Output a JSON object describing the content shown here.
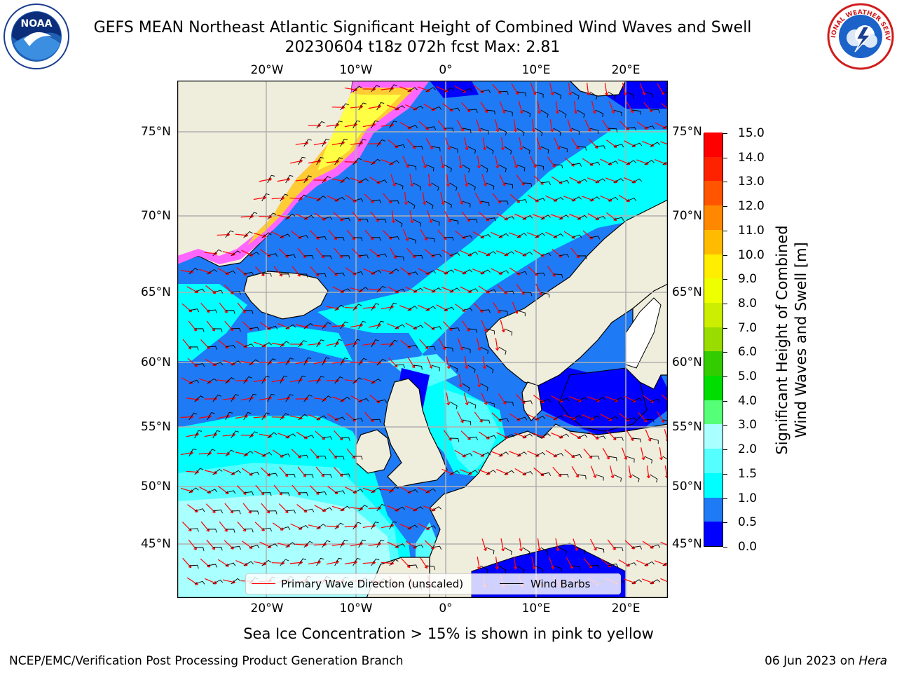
{
  "header": {
    "title_line1": "GEFS MEAN Northeast Atlantic Significant Height of Combined Wind Waves and Swell",
    "title_line2": "20230604 t18z 072h fcst   Max: 2.81"
  },
  "logos": {
    "left": {
      "icon": "noaa-logo-icon",
      "text": "NOAA",
      "ring_text": "NATIONAL OCEANIC AND ATMOSPHERIC ADMINISTRATION · U.S. DEPARTMENT OF COMMERCE"
    },
    "right": {
      "icon": "national-weather-service-logo-icon",
      "ring_text": "NATIONAL WEATHER SERVICE"
    }
  },
  "map": {
    "lon_ticks": [
      "20°W",
      "10°W",
      "0°",
      "10°E",
      "20°E"
    ],
    "lat_ticks": [
      "75°N",
      "70°N",
      "65°N",
      "60°N",
      "55°N",
      "50°N",
      "45°N"
    ],
    "legend": {
      "wave_label": "Primary Wave Direction (unscaled)",
      "wave_color": "#ff0000",
      "barb_label": "Wind Barbs",
      "barb_color": "#000000"
    },
    "colors": {
      "ocean_0_0.5": "#0000ff",
      "ocean_0.5_1.0": "#1f7af5",
      "ocean_1.0_1.5": "#00ffff",
      "ocean_1.5_2.0": "#55ffff",
      "ocean_2.0_3.0": "#aaffff",
      "land": "#efeddc",
      "sea_ice": "#ff66ff"
    }
  },
  "colorbar": {
    "title_line1": "Significant Height of Combined",
    "title_line2": "Wind Waves and Swell [m]",
    "ticks": [
      "0.0",
      "0.5",
      "1.0",
      "1.5",
      "2.0",
      "3.0",
      "4.0",
      "5.0",
      "6.0",
      "7.0",
      "8.0",
      "9.0",
      "10.0",
      "11.0",
      "12.0",
      "13.0",
      "14.0",
      "15.0"
    ],
    "colors": [
      "#0000ff",
      "#1f7af5",
      "#00ffff",
      "#55ffff",
      "#aaffff",
      "#55ff77",
      "#00dd00",
      "#33cc00",
      "#99dd00",
      "#ccee00",
      "#eeff00",
      "#ffee00",
      "#ffbb00",
      "#ff8800",
      "#ff5500",
      "#ff2200",
      "#ff0000"
    ]
  },
  "footer": {
    "note": "Sea Ice Concentration > 15% is shown in pink to yellow",
    "left": "NCEP/EMC/Verification Post Processing Product Generation Branch",
    "right_prefix": "06 Jun 2023 on ",
    "right_host": "Hera"
  }
}
